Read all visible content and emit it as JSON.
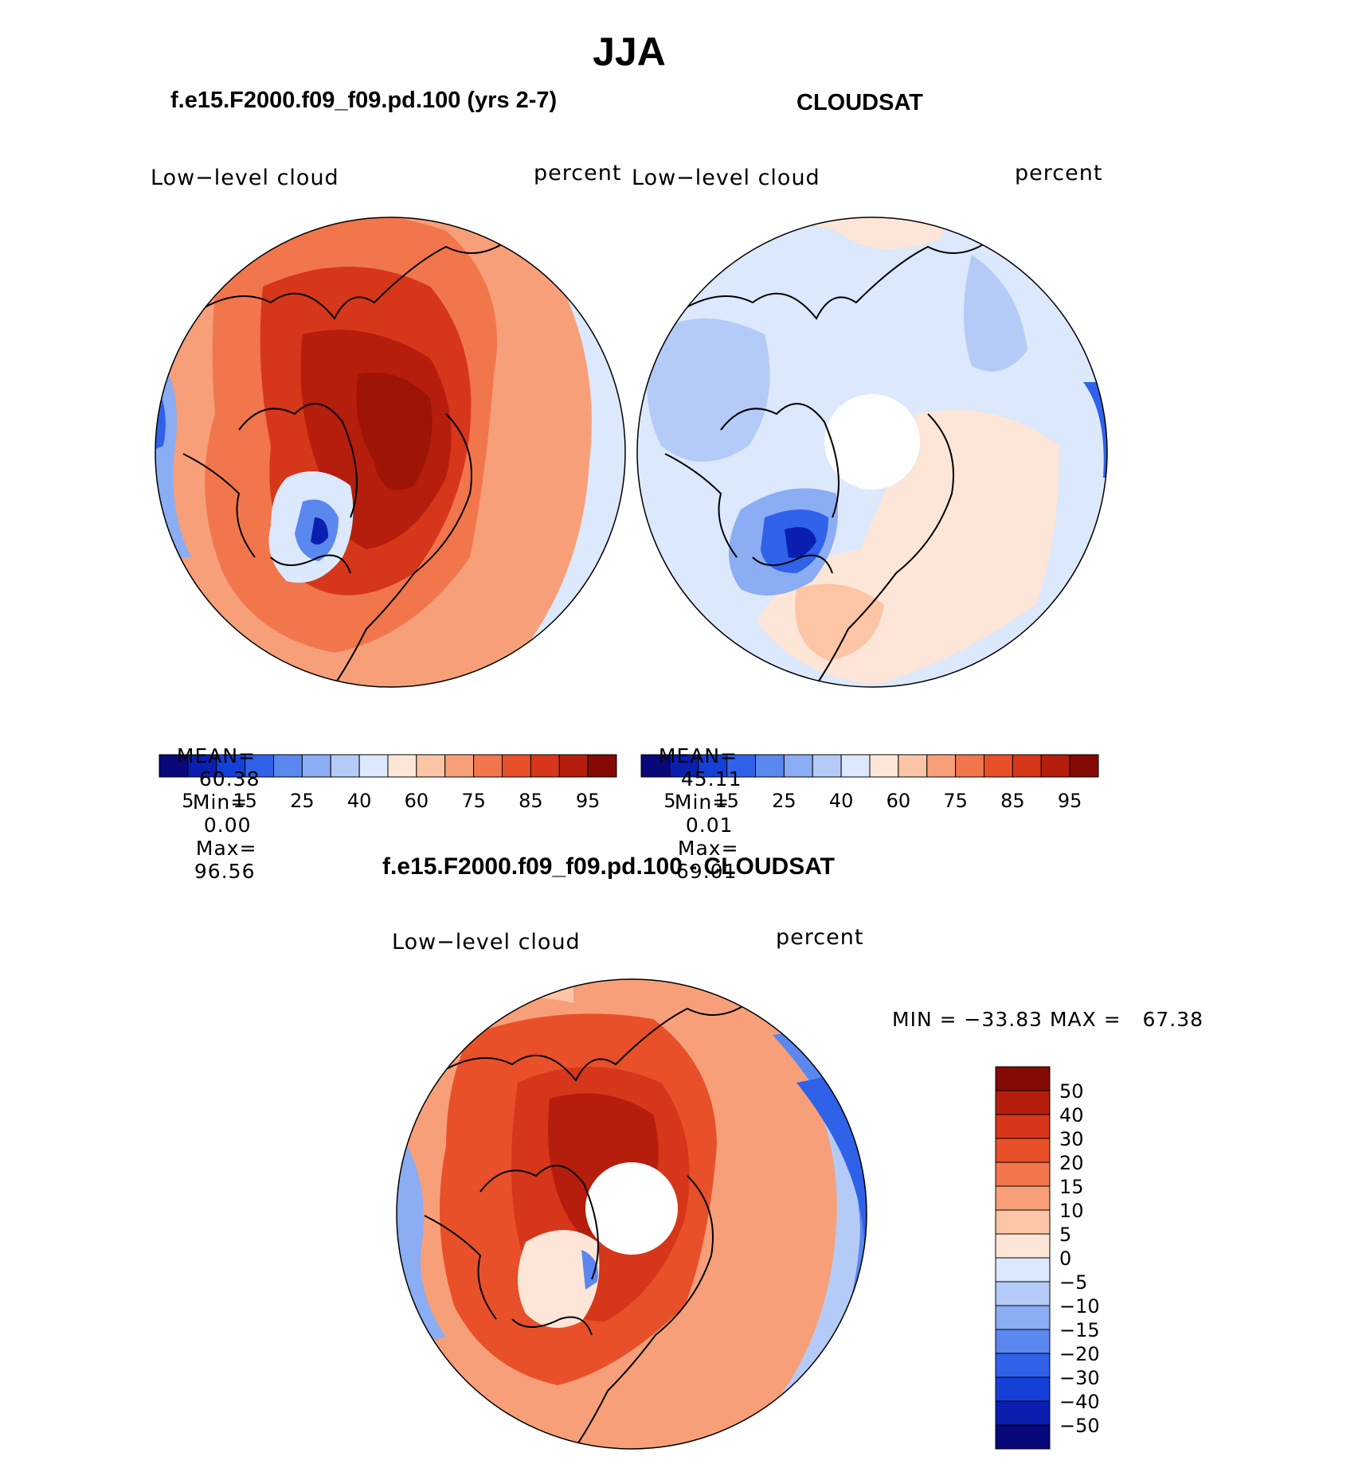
{
  "title": "JJA",
  "panels": [
    {
      "case_title": "f.e15.F2000.f09_f09.pd.100 (yrs 2-7)",
      "left_label": "Low−level cloud",
      "right_label": "percent",
      "stats": {
        "mean_label": "MEAN=",
        "mean": "60.38",
        "min_label": "Min=",
        "min": "0.00",
        "max_label": "Max=",
        "max": "96.56"
      }
    },
    {
      "case_title": "CLOUDSAT",
      "left_label": "Low−level cloud",
      "right_label": "percent",
      "stats": {
        "mean_label": "MEAN=",
        "mean": "45.11",
        "min_label": "Min=",
        "min": "0.01",
        "max_label": "Max=",
        "max": "69.01"
      }
    }
  ],
  "top_colorbar": {
    "tick_labels": [
      "5",
      "15",
      "25",
      "40",
      "60",
      "75",
      "85",
      "95"
    ],
    "colors": [
      "#08087a",
      "#0a1fb0",
      "#1540d8",
      "#2f62e8",
      "#5a88ef",
      "#8aadf3",
      "#b5cbf7",
      "#dce8fb",
      "#fde6d7",
      "#fbc5a6",
      "#f79f78",
      "#f2764c",
      "#e8502a",
      "#d6361a",
      "#b51d0d",
      "#850a06"
    ]
  },
  "diff_panel": {
    "title": "f.e15.F2000.f09_f09.pd.100 - CLOUDSAT",
    "left_label": "Low−level cloud",
    "right_label": "percent",
    "minmax": "MIN = −33.83 MAX =   67.38"
  },
  "diff_colorbar": {
    "tick_labels": [
      "50",
      "40",
      "30",
      "20",
      "15",
      "10",
      "5",
      "0",
      "−5",
      "−10",
      "−15",
      "−20",
      "−30",
      "−40",
      "−50"
    ],
    "colors": [
      "#850a06",
      "#b51d0d",
      "#d6361a",
      "#e8502a",
      "#f2764c",
      "#f79f78",
      "#fbc5a6",
      "#fde6d7",
      "#dce8fb",
      "#b5cbf7",
      "#8aadf3",
      "#5a88ef",
      "#2f62e8",
      "#1540d8",
      "#0a1fb0",
      "#08087a"
    ]
  },
  "colors": {
    "dark_red": "#9e1406",
    "red": "#d6361a",
    "orange": "#f2764c",
    "salmon": "#f79f78",
    "peach": "#fbc5a6",
    "cream": "#fde6d7",
    "pale_blue": "#dce8fb",
    "light_blue": "#b5cbf7",
    "mid_blue": "#8aadf3",
    "blue": "#5a88ef",
    "deep_blue": "#2f62e8",
    "navy": "#0a1fb0"
  }
}
